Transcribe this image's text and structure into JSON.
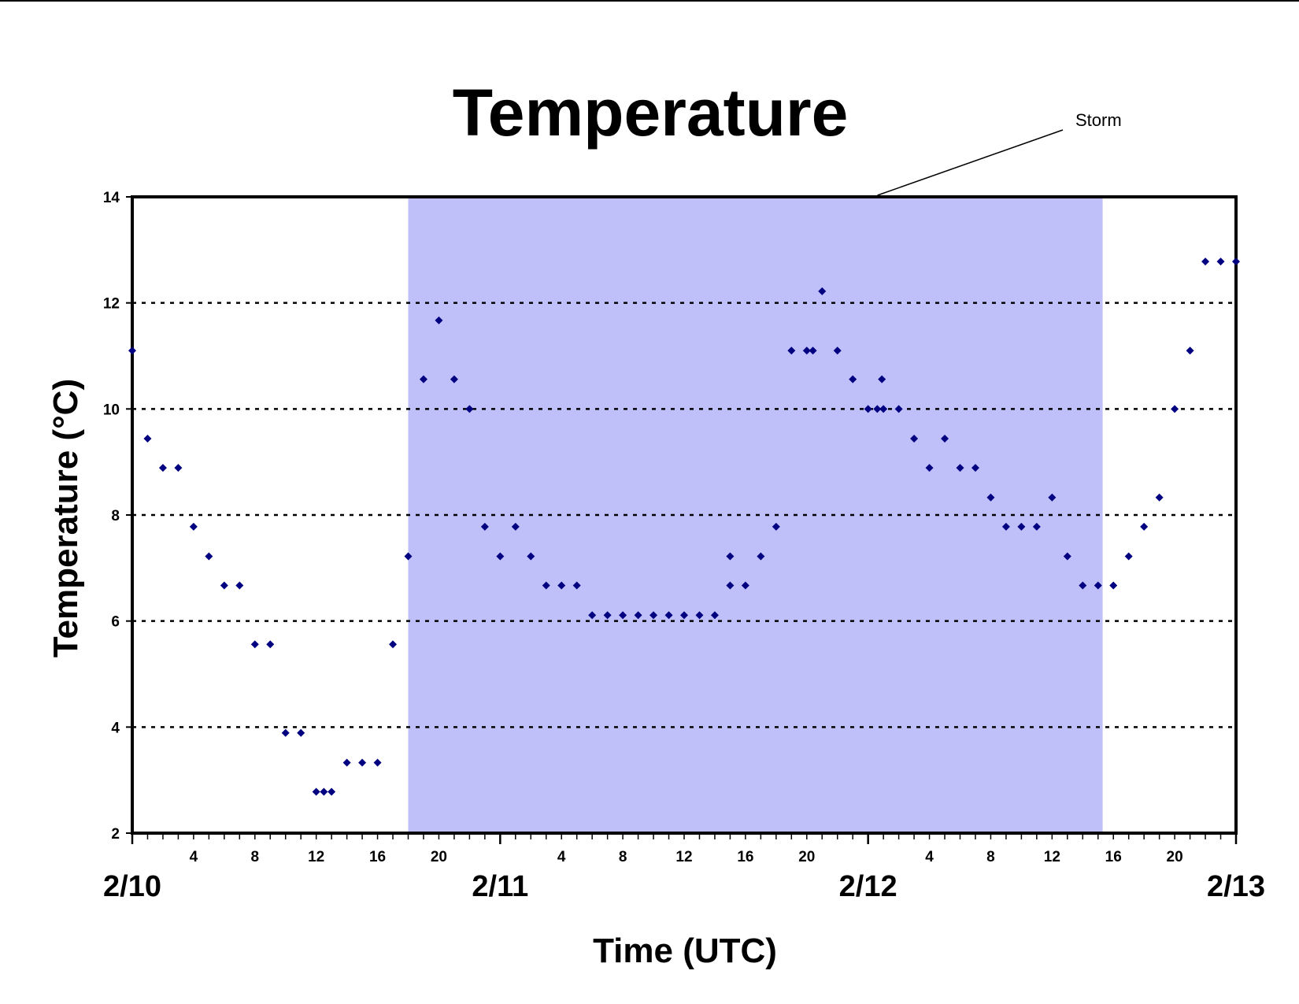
{
  "chart_data": {
    "type": "scatter",
    "title": "Temperature",
    "xlabel": "Time (UTC)",
    "ylabel": "Temperature (°C)",
    "ylim": [
      2,
      14
    ],
    "yticks": [
      2,
      4,
      6,
      8,
      10,
      12,
      14
    ],
    "grid": "horizontal dotted",
    "legend": "none",
    "x_units": "hours UTC from 2/10 00:00",
    "xlim": [
      0,
      72
    ],
    "hour_ticks": [
      {
        "x": 4,
        "label": "4"
      },
      {
        "x": 8,
        "label": "8"
      },
      {
        "x": 12,
        "label": "12"
      },
      {
        "x": 16,
        "label": "16"
      },
      {
        "x": 20,
        "label": "20"
      },
      {
        "x": 28,
        "label": "4"
      },
      {
        "x": 32,
        "label": "8"
      },
      {
        "x": 36,
        "label": "12"
      },
      {
        "x": 40,
        "label": "16"
      },
      {
        "x": 44,
        "label": "20"
      },
      {
        "x": 52,
        "label": "4"
      },
      {
        "x": 56,
        "label": "8"
      },
      {
        "x": 60,
        "label": "12"
      },
      {
        "x": 64,
        "label": "16"
      },
      {
        "x": 68,
        "label": "20"
      }
    ],
    "day_ticks": [
      {
        "x": 0,
        "label": "2/10"
      },
      {
        "x": 24,
        "label": "2/11"
      },
      {
        "x": 48,
        "label": "2/12"
      },
      {
        "x": 72,
        "label": "2/13"
      }
    ],
    "annotation": {
      "label": "Storm",
      "x_start": 18,
      "x_end": 63.3,
      "color": "#bfbffa"
    },
    "marker_color": "#000080",
    "series": [
      {
        "points": [
          [
            0,
            11.1
          ],
          [
            1,
            9.44
          ],
          [
            2,
            8.89
          ],
          [
            3,
            8.89
          ],
          [
            4,
            7.78
          ],
          [
            5,
            7.22
          ],
          [
            6,
            6.67
          ],
          [
            7,
            6.67
          ],
          [
            8,
            5.56
          ],
          [
            9,
            5.56
          ],
          [
            10,
            3.89
          ],
          [
            11,
            3.89
          ],
          [
            12,
            2.78
          ],
          [
            12.5,
            2.78
          ],
          [
            13,
            2.78
          ],
          [
            14,
            3.33
          ],
          [
            15,
            3.33
          ],
          [
            16,
            3.33
          ],
          [
            17,
            5.56
          ],
          [
            18,
            7.22
          ],
          [
            19,
            10.56
          ],
          [
            20,
            11.67
          ],
          [
            21,
            10.56
          ],
          [
            22,
            10.0
          ],
          [
            23,
            7.78
          ],
          [
            24,
            7.22
          ],
          [
            25,
            7.78
          ],
          [
            26,
            7.22
          ],
          [
            27,
            6.67
          ],
          [
            28,
            6.67
          ],
          [
            29,
            6.67
          ],
          [
            30,
            6.11
          ],
          [
            31,
            6.11
          ],
          [
            32,
            6.11
          ],
          [
            33,
            6.11
          ],
          [
            34,
            6.11
          ],
          [
            35,
            6.11
          ],
          [
            36,
            6.11
          ],
          [
            37,
            6.11
          ],
          [
            38,
            6.11
          ],
          [
            39,
            7.22
          ],
          [
            39,
            6.67
          ],
          [
            40,
            6.67
          ],
          [
            41,
            7.22
          ],
          [
            42,
            7.78
          ],
          [
            43,
            11.1
          ],
          [
            44,
            11.1
          ],
          [
            44.4,
            11.1
          ],
          [
            45,
            12.22
          ],
          [
            46,
            11.1
          ],
          [
            47,
            10.56
          ],
          [
            48,
            10.0
          ],
          [
            48.6,
            10.0
          ],
          [
            48.9,
            10.56
          ],
          [
            49,
            10.0
          ],
          [
            50,
            10.0
          ],
          [
            51,
            9.44
          ],
          [
            52,
            8.89
          ],
          [
            53,
            9.44
          ],
          [
            54,
            8.89
          ],
          [
            55,
            8.89
          ],
          [
            56,
            8.33
          ],
          [
            57,
            7.78
          ],
          [
            58,
            7.78
          ],
          [
            59,
            7.78
          ],
          [
            60,
            8.33
          ],
          [
            61,
            7.22
          ],
          [
            62,
            6.67
          ],
          [
            63,
            6.67
          ],
          [
            64,
            6.67
          ],
          [
            65,
            7.22
          ],
          [
            66,
            7.78
          ],
          [
            67,
            8.33
          ],
          [
            68,
            10.0
          ],
          [
            69,
            11.1
          ],
          [
            70,
            12.78
          ],
          [
            71,
            12.78
          ],
          [
            72,
            12.78
          ]
        ]
      }
    ]
  }
}
